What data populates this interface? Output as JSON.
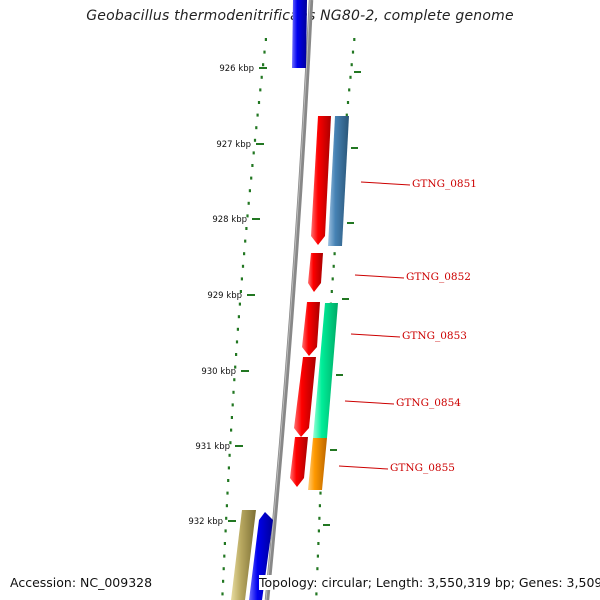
{
  "title": "Geobacillus thermodenitrificans NG80-2, complete genome",
  "footer": {
    "accession": "Accession: NC_009328",
    "summary": "Topology: circular; Length: 3,550,319 bp; Genes: 3,509"
  },
  "ruler": {
    "ticks": [
      "926 kbp",
      "927 kbp",
      "928 kbp",
      "929 kbp",
      "930 kbp",
      "931 kbp",
      "932 kbp"
    ]
  },
  "genes": [
    {
      "label": "GTNG_0851",
      "color": "#4682b4"
    },
    {
      "label": "GTNG_0852",
      "color": "#ee0000"
    },
    {
      "label": "GTNG_0853",
      "color": "#ee0000"
    },
    {
      "label": "GTNG_0854",
      "color": "#00ee99"
    },
    {
      "label": "GTNG_0855",
      "color": "#ff9900"
    }
  ],
  "colors": {
    "forward_strand": "#ee0000",
    "blue_gene": "#0000ee",
    "olive_gene": "#b8a860",
    "backbone": "#888888",
    "ruler": "#227722",
    "label": "#cc0000"
  }
}
